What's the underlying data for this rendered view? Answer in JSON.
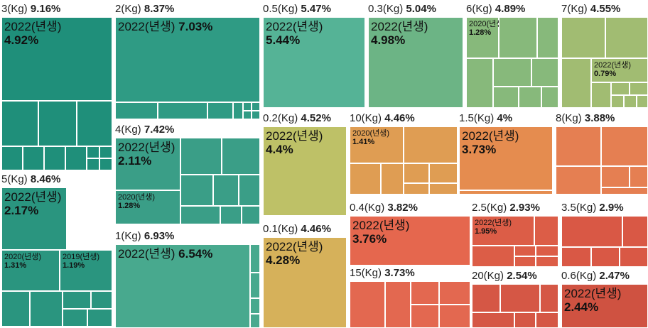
{
  "chart_data": {
    "type": "treemap",
    "title": "",
    "groups": [
      {
        "name": "3(Kg)",
        "pct": "9.16%",
        "color": "#1f8f7a",
        "labeled": [
          {
            "name": "2022(년생)",
            "pct": "4.92%"
          }
        ]
      },
      {
        "name": "5(Kg)",
        "pct": "8.46%",
        "color": "#2a957f",
        "labeled": [
          {
            "name": "2022(년생)",
            "pct": "2.17%"
          },
          {
            "name": "2020(년생)",
            "pct": "1.31%"
          },
          {
            "name": "2019(년생)",
            "pct": "1.19%"
          }
        ]
      },
      {
        "name": "2(Kg)",
        "pct": "8.37%",
        "color": "#2f9b84",
        "labeled": [
          {
            "name": "2022(년생)",
            "pct": "7.03%"
          }
        ]
      },
      {
        "name": "4(Kg)",
        "pct": "7.42%",
        "color": "#3a9e87",
        "labeled": [
          {
            "name": "2022(년생)",
            "pct": "2.11%"
          },
          {
            "name": "2020(년생)",
            "pct": "1.28%"
          }
        ]
      },
      {
        "name": "1(Kg)",
        "pct": "6.93%",
        "color": "#48a98e",
        "labeled": [
          {
            "name": "2022(년생)",
            "pct": "6.54%"
          }
        ]
      },
      {
        "name": "0.5(Kg)",
        "pct": "5.47%",
        "color": "#55b396",
        "labeled": [
          {
            "name": "2022(년생)",
            "pct": "5.44%"
          }
        ]
      },
      {
        "name": "0.3(Kg)",
        "pct": "5.04%",
        "color": "#6cb485",
        "labeled": [
          {
            "name": "2022(년생)",
            "pct": "4.98%"
          }
        ]
      },
      {
        "name": "6(Kg)",
        "pct": "4.89%",
        "color": "#87b97b",
        "labeled": [
          {
            "name": "2020(년생)",
            "pct": "1.28%"
          }
        ]
      },
      {
        "name": "7(Kg)",
        "pct": "4.55%",
        "color": "#a1bc72",
        "labeled": [
          {
            "name": "2022(년생)",
            "pct": "0.79%"
          }
        ]
      },
      {
        "name": "0.2(Kg)",
        "pct": "4.52%",
        "color": "#bec167",
        "labeled": [
          {
            "name": "2022(년생)",
            "pct": "4.4%"
          }
        ]
      },
      {
        "name": "0.1(Kg)",
        "pct": "4.46%",
        "color": "#d6b15a",
        "labeled": [
          {
            "name": "2022(년생)",
            "pct": "4.28%"
          }
        ]
      },
      {
        "name": "10(Kg)",
        "pct": "4.46%",
        "color": "#df9d53",
        "labeled": [
          {
            "name": "2020(년생)",
            "pct": "1.41%"
          }
        ]
      },
      {
        "name": "1.5(Kg)",
        "pct": "4%",
        "color": "#e58c4f",
        "labeled": [
          {
            "name": "2022(년생)",
            "pct": "3.73%"
          }
        ]
      },
      {
        "name": "8(Kg)",
        "pct": "3.88%",
        "color": "#e57f52",
        "labeled": []
      },
      {
        "name": "0.4(Kg)",
        "pct": "3.82%",
        "color": "#e5674e",
        "labeled": [
          {
            "name": "2022(년생)",
            "pct": "3.76%"
          }
        ]
      },
      {
        "name": "15(Kg)",
        "pct": "3.73%",
        "color": "#e36850",
        "labeled": []
      },
      {
        "name": "2.5(Kg)",
        "pct": "2.93%",
        "color": "#dc5d47",
        "labeled": [
          {
            "name": "2022(년생)",
            "pct": "1.95%"
          }
        ]
      },
      {
        "name": "3.5(Kg)",
        "pct": "2.9%",
        "color": "#d95845",
        "labeled": []
      },
      {
        "name": "20(Kg)",
        "pct": "2.54%",
        "color": "#d55745",
        "labeled": []
      },
      {
        "name": "0.6(Kg)",
        "pct": "2.47%",
        "color": "#cf5241",
        "labeled": [
          {
            "name": "2022(년생)",
            "pct": "2.44%"
          }
        ]
      }
    ]
  }
}
